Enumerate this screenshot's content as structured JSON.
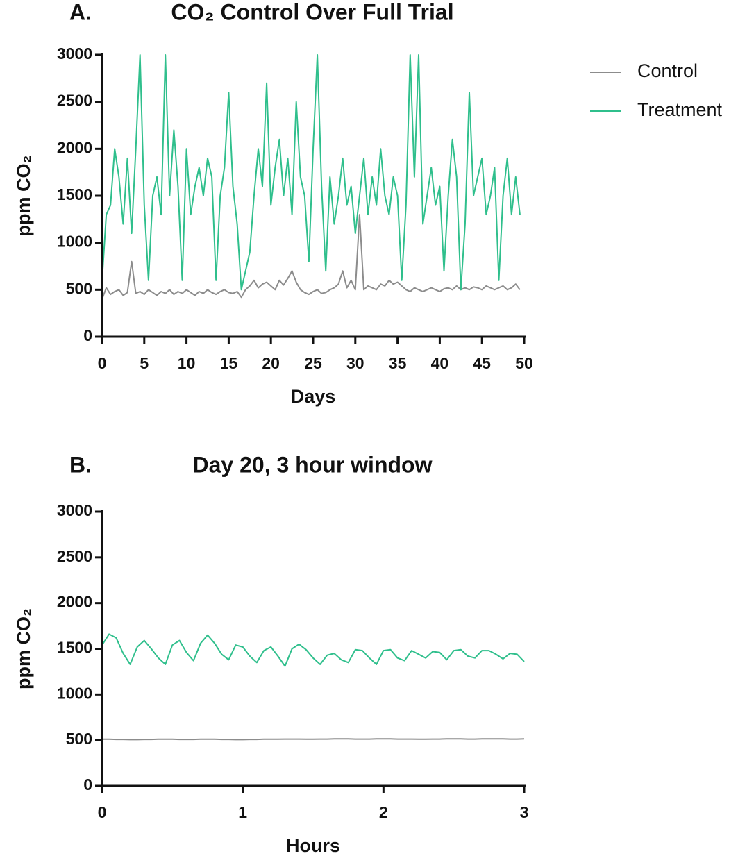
{
  "chart_data": [
    {
      "type": "line",
      "panel_label": "A.",
      "title": "CO₂ Control Over Full Trial",
      "xlabel": "Days",
      "ylabel": "ppm CO₂",
      "x": [
        0,
        0.5,
        1,
        1.5,
        2,
        2.5,
        3,
        3.5,
        4,
        4.5,
        5,
        5.5,
        6,
        6.5,
        7,
        7.5,
        8,
        8.5,
        9,
        9.5,
        10,
        10.5,
        11,
        11.5,
        12,
        12.5,
        13,
        13.5,
        14,
        14.5,
        15,
        15.5,
        16,
        16.5,
        17,
        17.5,
        18,
        18.5,
        19,
        19.5,
        20,
        20.5,
        21,
        21.5,
        22,
        22.5,
        23,
        23.5,
        24,
        24.5,
        25,
        25.5,
        26,
        26.5,
        27,
        27.5,
        28,
        28.5,
        29,
        29.5,
        30,
        30.5,
        31,
        31.5,
        32,
        32.5,
        33,
        33.5,
        34,
        34.5,
        35,
        35.5,
        36,
        36.5,
        37,
        37.5,
        38,
        38.5,
        39,
        39.5,
        40,
        40.5,
        41,
        41.5,
        42,
        42.5,
        43,
        43.5,
        44,
        44.5,
        45,
        45.5,
        46,
        46.5,
        47,
        47.5,
        48,
        48.5,
        49,
        49.5
      ],
      "series": [
        {
          "name": "Control",
          "color": "#8c8c8c",
          "values": [
            400,
            520,
            450,
            480,
            500,
            440,
            470,
            800,
            460,
            480,
            450,
            500,
            470,
            440,
            480,
            460,
            500,
            450,
            480,
            460,
            500,
            470,
            440,
            480,
            460,
            500,
            470,
            450,
            480,
            500,
            470,
            460,
            480,
            420,
            500,
            540,
            600,
            520,
            560,
            580,
            540,
            500,
            600,
            550,
            620,
            700,
            580,
            500,
            470,
            450,
            480,
            500,
            460,
            470,
            500,
            520,
            560,
            700,
            520,
            600,
            500,
            1300,
            500,
            540,
            520,
            500,
            560,
            540,
            600,
            560,
            580,
            540,
            500,
            480,
            520,
            500,
            480,
            500,
            520,
            500,
            480,
            510,
            520,
            500,
            540,
            500,
            520,
            500,
            530,
            520,
            500,
            540,
            520,
            500,
            520,
            540,
            500,
            520,
            560,
            500
          ]
        },
        {
          "name": "Treatment",
          "color": "#2fbf8c",
          "values": [
            600,
            1300,
            1400,
            2000,
            1700,
            1200,
            1900,
            1100,
            2000,
            3000,
            1400,
            600,
            1500,
            1700,
            1300,
            3000,
            1500,
            2200,
            1600,
            600,
            2000,
            1300,
            1600,
            1800,
            1500,
            1900,
            1700,
            600,
            1500,
            1800,
            2600,
            1600,
            1200,
            500,
            700,
            900,
            1500,
            2000,
            1600,
            2700,
            1400,
            1800,
            2100,
            1500,
            1900,
            1300,
            2500,
            1700,
            1500,
            800,
            2000,
            3000,
            1600,
            700,
            1700,
            1200,
            1500,
            1900,
            1400,
            1600,
            1100,
            1500,
            1900,
            1300,
            1700,
            1400,
            2000,
            1500,
            1300,
            1700,
            1500,
            600,
            1400,
            3000,
            1700,
            3000,
            1200,
            1500,
            1800,
            1400,
            1600,
            700,
            1500,
            2100,
            1700,
            500,
            1200,
            2600,
            1500,
            1700,
            1900,
            1300,
            1500,
            1800,
            600,
            1500,
            1900,
            1300,
            1700,
            1300
          ]
        }
      ],
      "xlim": [
        0,
        50
      ],
      "xticks": [
        0,
        5,
        10,
        15,
        20,
        25,
        30,
        35,
        40,
        45,
        50
      ],
      "ylim": [
        0,
        3000
      ],
      "yticks": [
        0,
        500,
        1000,
        1500,
        2000,
        2500,
        3000
      ],
      "grid": false,
      "legend": "outside-right"
    },
    {
      "type": "line",
      "panel_label": "B.",
      "title": "Day 20, 3 hour window",
      "xlabel": "Hours",
      "ylabel": "ppm CO₂",
      "x": [
        0,
        0.05,
        0.1,
        0.15,
        0.2,
        0.25,
        0.3,
        0.35,
        0.4,
        0.45,
        0.5,
        0.55,
        0.6,
        0.65,
        0.7,
        0.75,
        0.8,
        0.85,
        0.9,
        0.95,
        1,
        1.05,
        1.1,
        1.15,
        1.2,
        1.25,
        1.3,
        1.35,
        1.4,
        1.45,
        1.5,
        1.55,
        1.6,
        1.65,
        1.7,
        1.75,
        1.8,
        1.85,
        1.9,
        1.95,
        2,
        2.05,
        2.1,
        2.15,
        2.2,
        2.25,
        2.3,
        2.35,
        2.4,
        2.45,
        2.5,
        2.55,
        2.6,
        2.65,
        2.7,
        2.75,
        2.8,
        2.85,
        2.9,
        2.95,
        3
      ],
      "series": [
        {
          "color": "#8c8c8c",
          "values": [
            510,
            510,
            508,
            508,
            506,
            506,
            508,
            508,
            510,
            510,
            510,
            508,
            508,
            508,
            510,
            510,
            510,
            508,
            508,
            506,
            506,
            508,
            508,
            510,
            510,
            510,
            512,
            512,
            512,
            510,
            510,
            512,
            512,
            514,
            514,
            514,
            512,
            512,
            512,
            514,
            514,
            514,
            512,
            512,
            512,
            510,
            510,
            512,
            512,
            514,
            514,
            514,
            512,
            512,
            514,
            514,
            514,
            514,
            512,
            512,
            514
          ]
        },
        {
          "color": "#2fbf8c",
          "values": [
            1540,
            1660,
            1620,
            1450,
            1330,
            1520,
            1590,
            1500,
            1400,
            1330,
            1540,
            1590,
            1460,
            1370,
            1560,
            1650,
            1560,
            1440,
            1380,
            1540,
            1520,
            1420,
            1350,
            1480,
            1520,
            1420,
            1310,
            1500,
            1550,
            1490,
            1400,
            1330,
            1430,
            1450,
            1380,
            1350,
            1490,
            1480,
            1400,
            1330,
            1480,
            1490,
            1400,
            1370,
            1480,
            1440,
            1400,
            1470,
            1460,
            1380,
            1480,
            1490,
            1420,
            1400,
            1480,
            1480,
            1440,
            1390,
            1450,
            1440,
            1360
          ]
        }
      ],
      "xlim": [
        0,
        3
      ],
      "xticks": [
        0,
        1,
        2,
        3
      ],
      "ylim": [
        0,
        3000
      ],
      "yticks": [
        0,
        500,
        1000,
        1500,
        2000,
        2500,
        3000
      ],
      "grid": false,
      "legend": "none"
    }
  ]
}
